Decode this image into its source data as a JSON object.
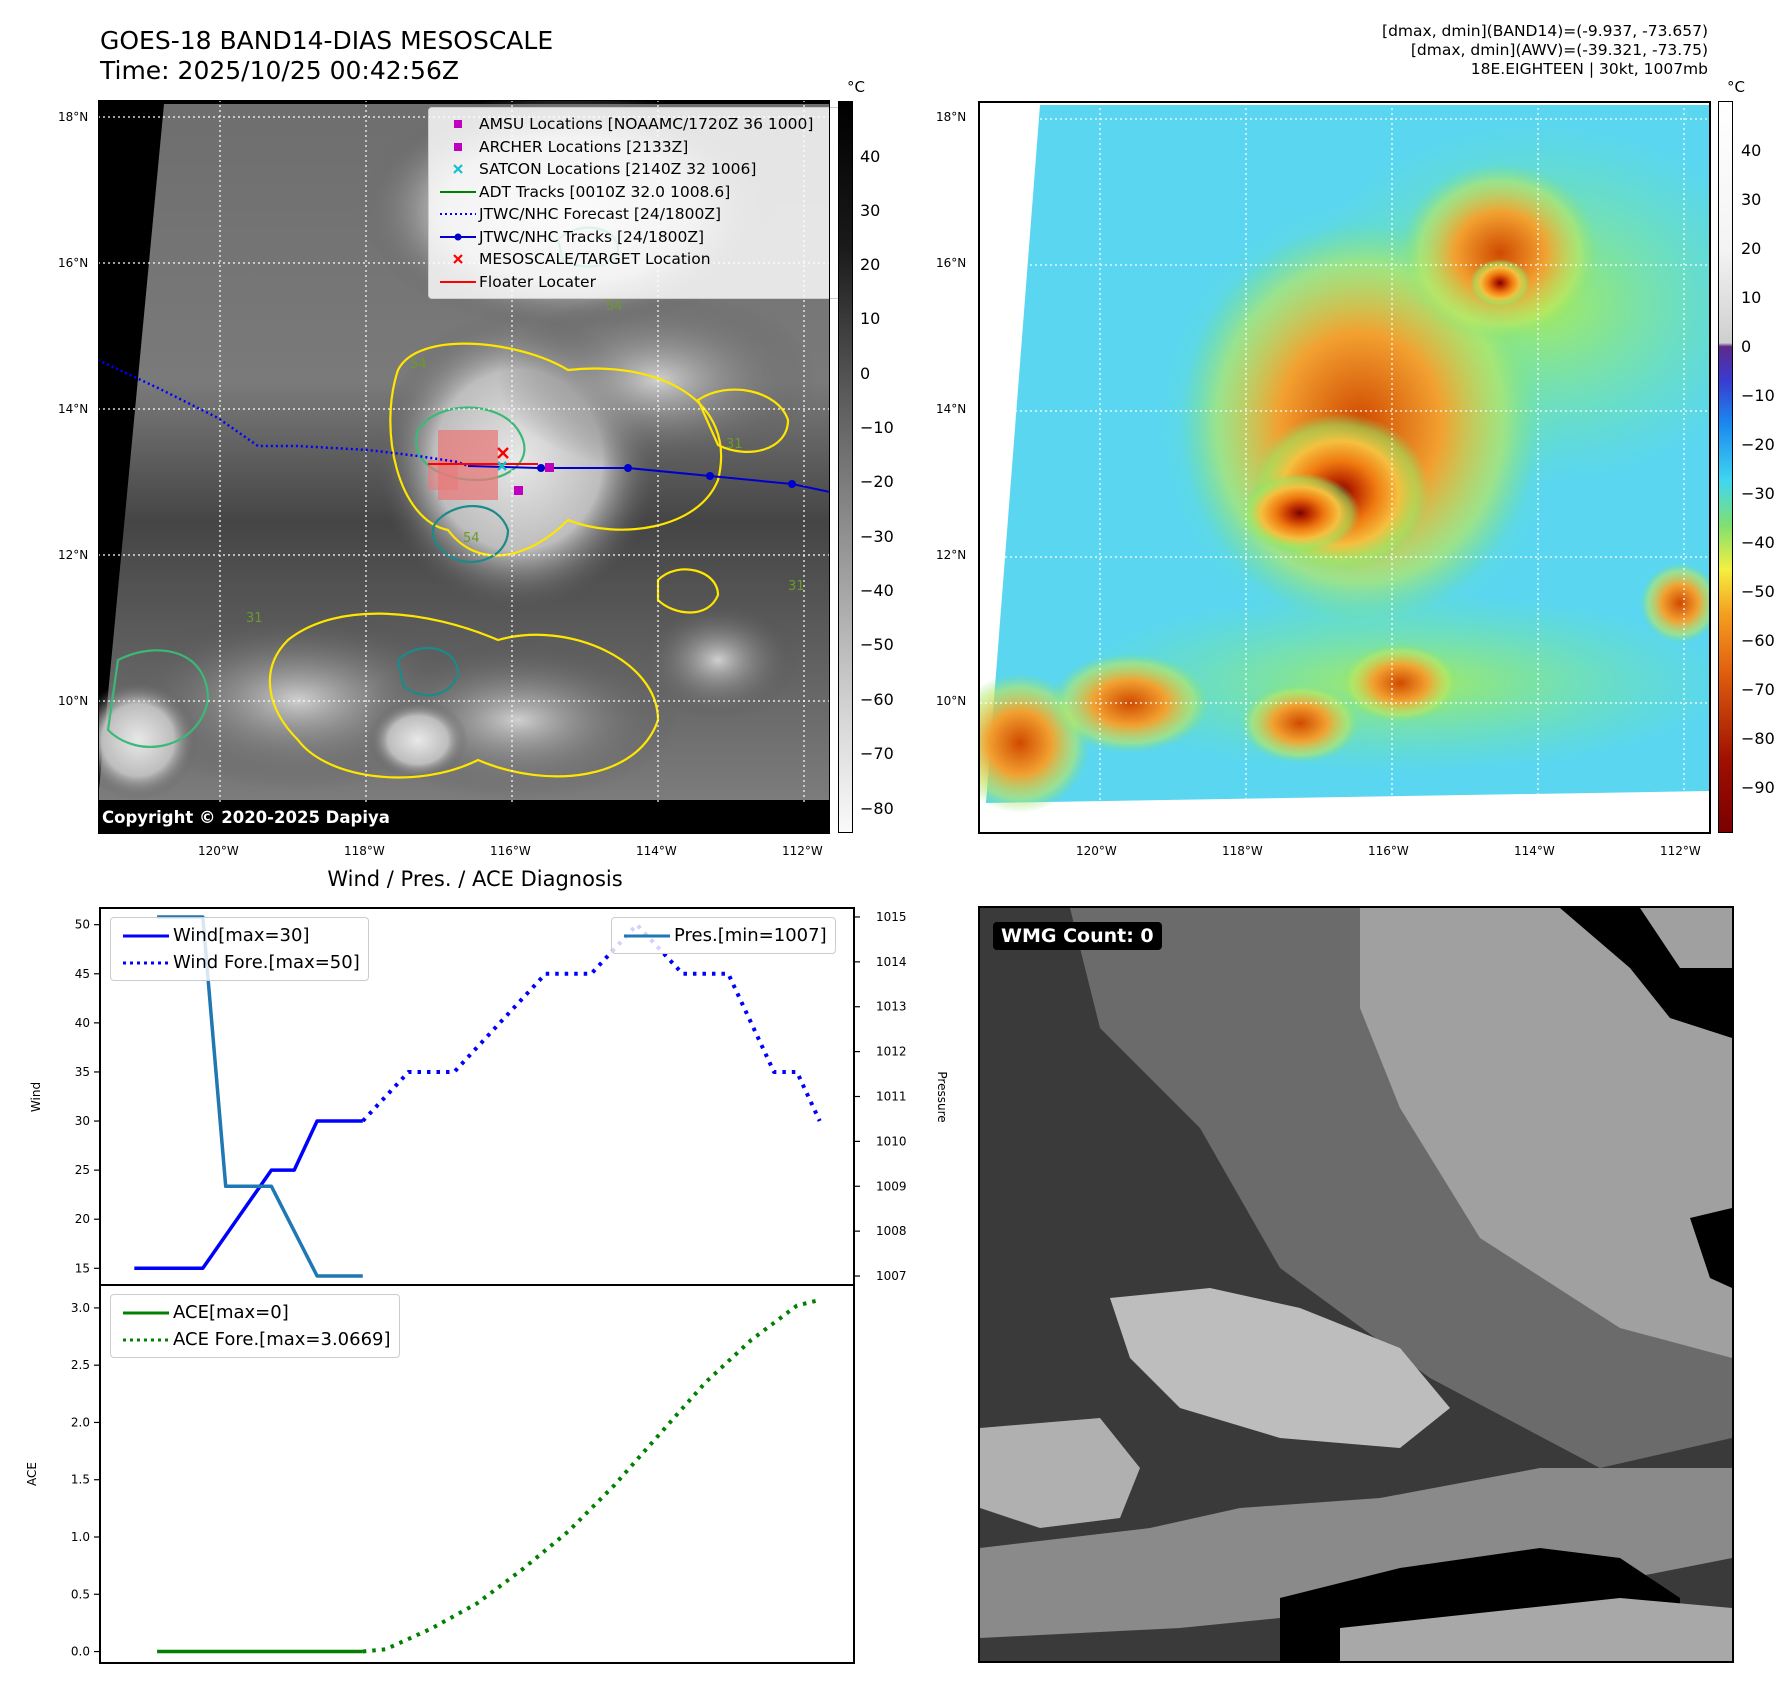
{
  "header": {
    "title_line1": "GOES-18 BAND14-DIAS MESOSCALE",
    "title_line2": "Time: 2025/10/25 00:42:56Z",
    "info_line1": "[dmax, dmin](BAND14)=(-9.937, -73.657)",
    "info_line2": "[dmax, dmin](AWV)=(-39.321, -73.75)",
    "info_line3": "18E.EIGHTEEN | 30kt, 1007mb"
  },
  "map_left": {
    "copyright": "Copyright © 2020-2025 Dapiya",
    "lat_labels": [
      "18°N",
      "16°N",
      "14°N",
      "12°N",
      "10°N"
    ],
    "lon_labels": [
      "120°W",
      "118°W",
      "116°W",
      "114°W",
      "112°W"
    ],
    "colorbar_unit": "°C",
    "colorbar_ticks": [
      "40",
      "30",
      "20",
      "10",
      "0",
      "−10",
      "−20",
      "−30",
      "−40",
      "−50",
      "−60",
      "−70",
      "−80"
    ],
    "contour_labels": [
      "54",
      "54",
      "31",
      "31",
      "31",
      "54"
    ],
    "legend": [
      {
        "label": "AMSU Locations [NOAAMC/1720Z 36 1000]",
        "symbol": "square",
        "color": "#bf00bf"
      },
      {
        "label": "ARCHER Locations [2133Z]",
        "symbol": "square",
        "color": "#bf00bf"
      },
      {
        "label": "SATCON Locations [2140Z 32 1006]",
        "symbol": "x",
        "color": "#17becf"
      },
      {
        "label": "ADT Tracks [0010Z 32.0 1008.6]",
        "symbol": "line",
        "color": "#008000"
      },
      {
        "label": "JTWC/NHC Forecast [24/1800Z]",
        "symbol": "dotted",
        "color": "#0000ff"
      },
      {
        "label": "JTWC/NHC Tracks [24/1800Z]",
        "symbol": "line-dot",
        "color": "#0000ff"
      },
      {
        "label": "MESOSCALE/TARGET Location",
        "symbol": "x",
        "color": "#ff0000"
      },
      {
        "label": "Floater Locater",
        "symbol": "line",
        "color": "#ff0000"
      }
    ]
  },
  "map_right": {
    "lat_labels": [
      "18°N",
      "16°N",
      "14°N",
      "12°N",
      "10°N"
    ],
    "lon_labels": [
      "120°W",
      "118°W",
      "116°W",
      "114°W",
      "112°W"
    ],
    "colorbar_unit": "°C",
    "colorbar_ticks": [
      "40",
      "30",
      "20",
      "10",
      "0",
      "−10",
      "−20",
      "−30",
      "−40",
      "−50",
      "−60",
      "−70",
      "−80",
      "−90"
    ]
  },
  "wmg": {
    "label": "WMG Count: 0"
  },
  "colors": {
    "wind": "#0000ff",
    "pressure": "#1f77b4",
    "ace": "#008000"
  },
  "chart_data": [
    {
      "type": "line",
      "title": "Wind / Pres. / ACE Diagnosis",
      "ylabel": "Wind",
      "ylim": [
        13.3,
        51.7
      ],
      "yticks": [
        15,
        20,
        25,
        30,
        35,
        40,
        45,
        50
      ],
      "x": [
        0,
        1,
        2,
        3,
        4,
        5,
        6,
        7,
        8,
        9,
        10,
        11,
        12,
        13,
        14,
        15,
        16,
        17,
        18,
        19,
        20,
        21,
        22,
        23,
        24,
        25,
        26,
        27,
        28,
        29,
        30
      ],
      "series": [
        {
          "name": "Wind[max=30]",
          "style": "solid",
          "x": [
            0,
            3,
            6,
            7,
            8,
            9,
            10
          ],
          "values": [
            15,
            15,
            25,
            25,
            30,
            30,
            30
          ]
        },
        {
          "name": "Wind Fore.[max=50]",
          "style": "dotted",
          "x": [
            10,
            12,
            14,
            16,
            18,
            20,
            22,
            24,
            26,
            28,
            29,
            30
          ],
          "values": [
            30,
            35,
            35,
            40,
            45,
            45,
            50,
            45,
            45,
            35,
            35,
            30
          ]
        }
      ]
    },
    {
      "type": "line",
      "ylabel": "Pressure",
      "ylim": [
        1006.8,
        1015.2
      ],
      "yticks": [
        1007,
        1008,
        1009,
        1010,
        1011,
        1012,
        1013,
        1014,
        1015
      ],
      "series": [
        {
          "name": "Pres.[min=1007]",
          "style": "solid",
          "x": [
            1,
            3,
            4,
            6,
            8,
            10
          ],
          "values": [
            1015,
            1015,
            1009,
            1009,
            1007,
            1007
          ]
        }
      ]
    },
    {
      "type": "line",
      "ylabel": "ACE",
      "ylim": [
        -0.1,
        3.2
      ],
      "yticks": [
        0.0,
        0.5,
        1.0,
        1.5,
        2.0,
        2.5,
        3.0
      ],
      "series": [
        {
          "name": "ACE[max=0]",
          "style": "solid",
          "x": [
            1,
            10
          ],
          "values": [
            0,
            0
          ]
        },
        {
          "name": "ACE Fore.[max=3.0669]",
          "style": "dotted",
          "x": [
            10,
            11,
            13,
            15,
            17,
            19,
            21,
            23,
            25,
            27,
            29,
            30
          ],
          "values": [
            0,
            0.02,
            0.2,
            0.42,
            0.72,
            1.05,
            1.45,
            1.9,
            2.35,
            2.72,
            3.02,
            3.07
          ]
        }
      ]
    }
  ]
}
